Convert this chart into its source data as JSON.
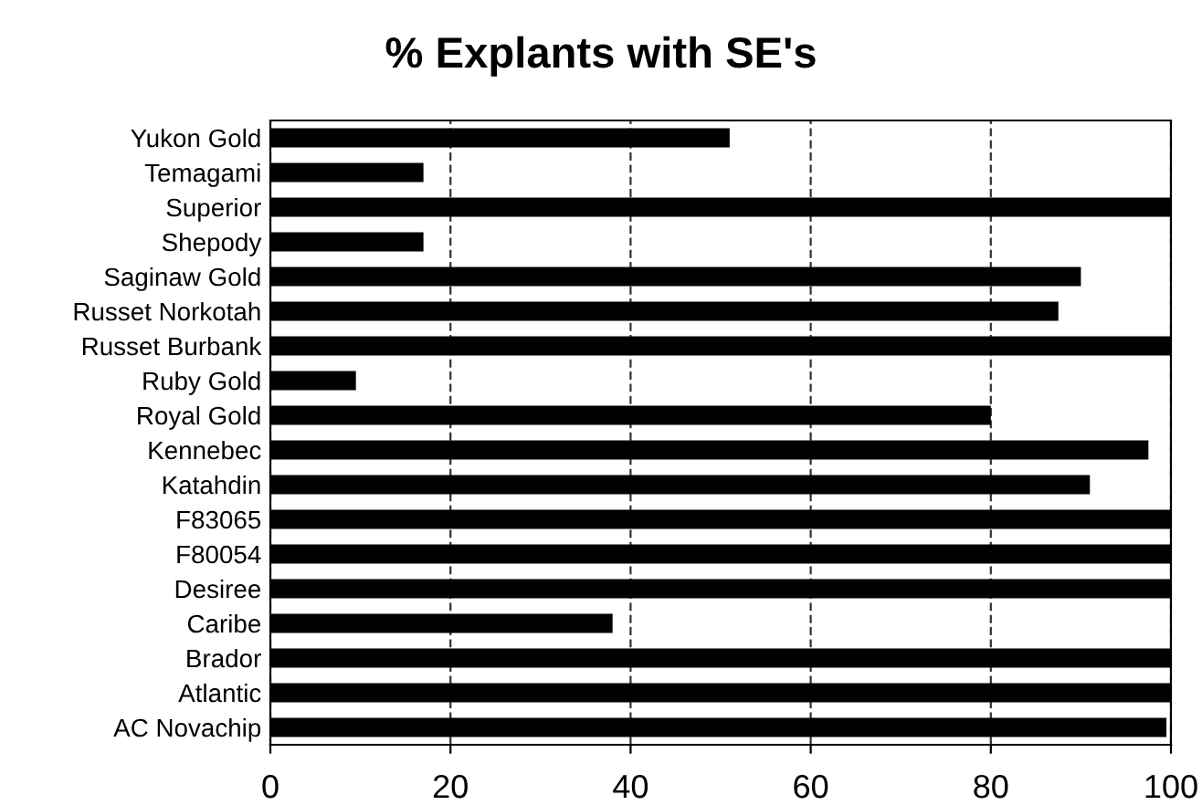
{
  "chart_data": {
    "type": "bar",
    "orientation": "horizontal",
    "title": "% Explants with SE's",
    "categories": [
      "Yukon Gold",
      "Temagami",
      "Superior",
      "Shepody",
      "Saginaw Gold",
      "Russet Norkotah",
      "Russet Burbank",
      "Ruby Gold",
      "Royal Gold",
      "Kennebec",
      "Katahdin",
      "F83065",
      "F80054",
      "Desiree",
      "Caribe",
      "Brador",
      "Atlantic",
      "AC Novachip"
    ],
    "values": [
      51,
      17,
      100,
      17,
      90,
      87.5,
      100,
      9.5,
      80,
      97.5,
      91,
      100,
      100,
      100,
      38,
      100,
      100,
      99.5
    ],
    "color": "#000000",
    "xlim": [
      0,
      100
    ],
    "xticks": [
      0,
      20,
      40,
      60,
      80,
      100
    ],
    "grid": "x"
  }
}
